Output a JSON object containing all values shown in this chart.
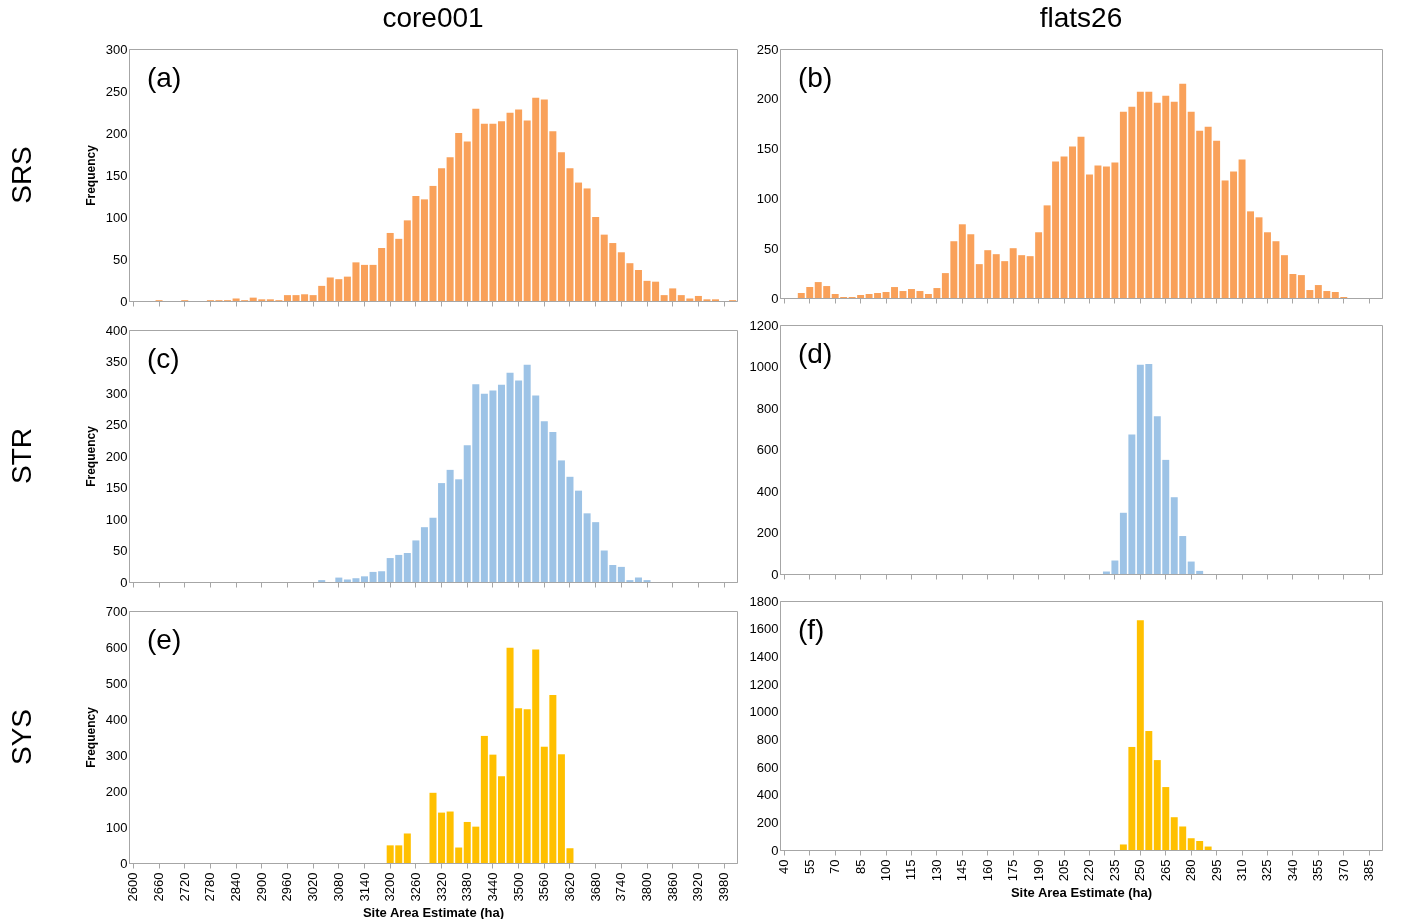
{
  "chart_data": [
    {
      "type": "bar",
      "title": "core001",
      "ylabel": "Frequency",
      "annotations": [
        "(a)",
        "SRS"
      ],
      "color": "#f9a15a",
      "ylim": [
        0,
        300
      ],
      "yticks": [
        0,
        50,
        100,
        150,
        200,
        250,
        300
      ],
      "tick_labels": "y",
      "categories": [
        "2600",
        null,
        null,
        "2660",
        null,
        null,
        "2720",
        null,
        null,
        "2780",
        null,
        null,
        "2840",
        null,
        null,
        "2900",
        null,
        null,
        "2960",
        null,
        null,
        "3020",
        null,
        null,
        "3080",
        null,
        null,
        "3140",
        null,
        null,
        "3200",
        null,
        null,
        "3260",
        null,
        null,
        "3320",
        null,
        null,
        "3380",
        null,
        null,
        "3440",
        null,
        null,
        "3500",
        null,
        null,
        "3560",
        null,
        null,
        "3620",
        null,
        null,
        "3680",
        null,
        null,
        "3740",
        null,
        null,
        "3800",
        null,
        null,
        "3860",
        null,
        null,
        "3920",
        null,
        null,
        "3980",
        null
      ],
      "values": [
        0,
        0,
        0,
        1,
        0,
        0,
        1,
        0,
        0,
        1,
        1,
        1,
        3,
        1,
        4,
        2,
        2,
        1,
        7,
        7,
        8,
        7,
        18,
        28,
        26,
        29,
        46,
        43,
        43,
        63,
        81,
        74,
        96,
        125,
        121,
        137,
        158,
        171,
        200,
        190,
        229,
        211,
        211,
        214,
        224,
        228,
        215,
        242,
        240,
        202,
        177,
        158,
        141,
        134,
        100,
        79,
        69,
        58,
        45,
        37,
        24,
        23,
        7,
        15,
        7,
        3,
        6,
        2,
        2,
        0,
        1
      ]
    },
    {
      "type": "bar",
      "title": "flats26",
      "annotations": [
        "(b)"
      ],
      "color": "#f9a15a",
      "ylim": [
        0,
        250
      ],
      "yticks": [
        0,
        50,
        100,
        150,
        200,
        250
      ],
      "tick_labels": "y",
      "categories": [
        "40",
        null,
        null,
        "55",
        null,
        null,
        "70",
        null,
        null,
        "85",
        null,
        null,
        "100",
        null,
        null,
        "115",
        null,
        null,
        "130",
        null,
        null,
        "145",
        null,
        null,
        "160",
        null,
        null,
        "175",
        null,
        null,
        "190",
        null,
        null,
        "205",
        null,
        null,
        "220",
        null,
        null,
        "235",
        null,
        null,
        "250",
        null,
        null,
        "265",
        null,
        null,
        "280",
        null,
        null,
        "295",
        null,
        null,
        "310",
        null,
        null,
        "325",
        null,
        null,
        "340",
        null,
        null,
        "355",
        null,
        null,
        "370",
        null,
        null,
        "385",
        null
      ],
      "values": [
        0,
        0,
        5,
        11,
        16,
        12,
        4,
        1,
        1,
        3,
        4,
        5,
        6,
        11,
        7,
        9,
        7,
        4,
        10,
        25,
        57,
        74,
        64,
        34,
        48,
        44,
        37,
        50,
        43,
        42,
        66,
        93,
        137,
        142,
        152,
        162,
        124,
        133,
        132,
        136,
        187,
        192,
        207,
        207,
        196,
        203,
        197,
        215,
        187,
        168,
        172,
        158,
        118,
        127,
        139,
        87,
        81,
        66,
        57,
        43,
        24,
        23,
        8,
        13,
        7,
        6,
        1,
        0,
        0,
        0,
        0
      ]
    },
    {
      "type": "bar",
      "ylabel": "Frequency",
      "annotations": [
        "(c)",
        "STR"
      ],
      "color": "#9dc3e6",
      "ylim": [
        0,
        400
      ],
      "yticks": [
        0,
        50,
        100,
        150,
        200,
        250,
        300,
        350,
        400
      ],
      "tick_labels": "y",
      "categories": [
        "2600",
        null,
        null,
        "2660",
        null,
        null,
        "2720",
        null,
        null,
        "2780",
        null,
        null,
        "2840",
        null,
        null,
        "2900",
        null,
        null,
        "2960",
        null,
        null,
        "3020",
        null,
        null,
        "3080",
        null,
        null,
        "3140",
        null,
        null,
        "3200",
        null,
        null,
        "3260",
        null,
        null,
        "3320",
        null,
        null,
        "3380",
        null,
        null,
        "3440",
        null,
        null,
        "3500",
        null,
        null,
        "3560",
        null,
        null,
        "3620",
        null,
        null,
        "3680",
        null,
        null,
        "3740",
        null,
        null,
        "3800",
        null,
        null,
        "3860",
        null,
        null,
        "3920",
        null,
        null,
        "3980",
        null
      ],
      "values": [
        0,
        0,
        0,
        0,
        0,
        0,
        0,
        0,
        0,
        0,
        0,
        0,
        0,
        0,
        0,
        0,
        0,
        0,
        0,
        0,
        0,
        0,
        3,
        0,
        7,
        4,
        6,
        9,
        16,
        17,
        38,
        43,
        46,
        66,
        87,
        102,
        157,
        178,
        163,
        217,
        314,
        299,
        304,
        313,
        332,
        320,
        345,
        296,
        255,
        238,
        193,
        167,
        145,
        109,
        95,
        50,
        27,
        24,
        3,
        7,
        3,
        0,
        0,
        0,
        0,
        0,
        0,
        0,
        0,
        0,
        0
      ]
    },
    {
      "type": "bar",
      "annotations": [
        "(d)"
      ],
      "color": "#9dc3e6",
      "ylim": [
        0,
        1200
      ],
      "yticks": [
        0,
        200,
        400,
        600,
        800,
        1000,
        1200
      ],
      "tick_labels": "y",
      "categories": [
        "40",
        null,
        null,
        "55",
        null,
        null,
        "70",
        null,
        null,
        "85",
        null,
        null,
        "100",
        null,
        null,
        "115",
        null,
        null,
        "130",
        null,
        null,
        "145",
        null,
        null,
        "160",
        null,
        null,
        "175",
        null,
        null,
        "190",
        null,
        null,
        "205",
        null,
        null,
        "220",
        null,
        null,
        "235",
        null,
        null,
        "250",
        null,
        null,
        "265",
        null,
        null,
        "280",
        null,
        null,
        "295",
        null,
        null,
        "310",
        null,
        null,
        "325",
        null,
        null,
        "340",
        null,
        null,
        "355",
        null,
        null,
        "370",
        null,
        null,
        "385",
        null
      ],
      "values": [
        0,
        0,
        0,
        0,
        0,
        0,
        0,
        0,
        0,
        0,
        0,
        0,
        0,
        0,
        0,
        0,
        0,
        0,
        0,
        0,
        0,
        0,
        0,
        0,
        0,
        0,
        0,
        0,
        0,
        0,
        0,
        0,
        0,
        0,
        0,
        0,
        0,
        0,
        12,
        65,
        295,
        672,
        1008,
        1012,
        760,
        550,
        370,
        183,
        60,
        15,
        0,
        0,
        0,
        0,
        0,
        0,
        0,
        0,
        0,
        0,
        0,
        0,
        0,
        0,
        0,
        0,
        0,
        0,
        0,
        0,
        0
      ]
    },
    {
      "type": "bar",
      "ylabel": "Frequency",
      "xlabel": "Site Area Estimate (ha)",
      "annotations": [
        "(e)",
        "SYS"
      ],
      "color": "#ffc000",
      "ylim": [
        0,
        700
      ],
      "yticks": [
        0,
        100,
        200,
        300,
        400,
        500,
        600,
        700
      ],
      "categories": [
        "2600",
        null,
        null,
        "2660",
        null,
        null,
        "2720",
        null,
        null,
        "2780",
        null,
        null,
        "2840",
        null,
        null,
        "2900",
        null,
        null,
        "2960",
        null,
        null,
        "3020",
        null,
        null,
        "3080",
        null,
        null,
        "3140",
        null,
        null,
        "3200",
        null,
        null,
        "3260",
        null,
        null,
        "3320",
        null,
        null,
        "3380",
        null,
        null,
        "3440",
        null,
        null,
        "3500",
        null,
        null,
        "3560",
        null,
        null,
        "3620",
        null,
        null,
        "3680",
        null,
        null,
        "3740",
        null,
        null,
        "3800",
        null,
        null,
        "3860",
        null,
        null,
        "3920",
        null,
        null,
        "3980",
        null
      ],
      "values": [
        0,
        0,
        0,
        0,
        0,
        0,
        0,
        0,
        0,
        0,
        0,
        0,
        0,
        0,
        0,
        0,
        0,
        0,
        0,
        0,
        0,
        0,
        0,
        0,
        0,
        0,
        0,
        0,
        0,
        0,
        49,
        49,
        82,
        0,
        0,
        195,
        140,
        143,
        43,
        114,
        101,
        353,
        301,
        241,
        598,
        430,
        427,
        593,
        323,
        467,
        302,
        41,
        0,
        0,
        0,
        0,
        0,
        0,
        0,
        0,
        0,
        0,
        0,
        0,
        0,
        0,
        0,
        0,
        0,
        0,
        0
      ]
    },
    {
      "type": "bar",
      "xlabel": "Site Area Estimate (ha)",
      "annotations": [
        "(f)"
      ],
      "color": "#ffc000",
      "ylim": [
        0,
        1800
      ],
      "yticks": [
        0,
        200,
        400,
        600,
        800,
        1000,
        1200,
        1400,
        1600,
        1800
      ],
      "categories": [
        "40",
        null,
        null,
        "55",
        null,
        null,
        "70",
        null,
        null,
        "85",
        null,
        null,
        "100",
        null,
        null,
        "115",
        null,
        null,
        "130",
        null,
        null,
        "145",
        null,
        null,
        "160",
        null,
        null,
        "175",
        null,
        null,
        "190",
        null,
        null,
        "205",
        null,
        null,
        "220",
        null,
        null,
        "235",
        null,
        null,
        "250",
        null,
        null,
        "265",
        null,
        null,
        "280",
        null,
        null,
        "295",
        null,
        null,
        "310",
        null,
        null,
        "325",
        null,
        null,
        "340",
        null,
        null,
        "355",
        null,
        null,
        "370",
        null,
        null,
        "385",
        null
      ],
      "values": [
        0,
        0,
        0,
        0,
        0,
        0,
        0,
        0,
        0,
        0,
        0,
        0,
        0,
        0,
        0,
        0,
        0,
        0,
        0,
        0,
        0,
        0,
        0,
        0,
        0,
        0,
        0,
        0,
        0,
        0,
        0,
        0,
        0,
        0,
        0,
        0,
        0,
        0,
        0,
        0,
        40,
        745,
        1660,
        860,
        650,
        455,
        237,
        170,
        85,
        65,
        25,
        0,
        0,
        0,
        0,
        0,
        0,
        0,
        0,
        0,
        0,
        0,
        0,
        0,
        0,
        0,
        0,
        0,
        0,
        0,
        0
      ]
    }
  ]
}
